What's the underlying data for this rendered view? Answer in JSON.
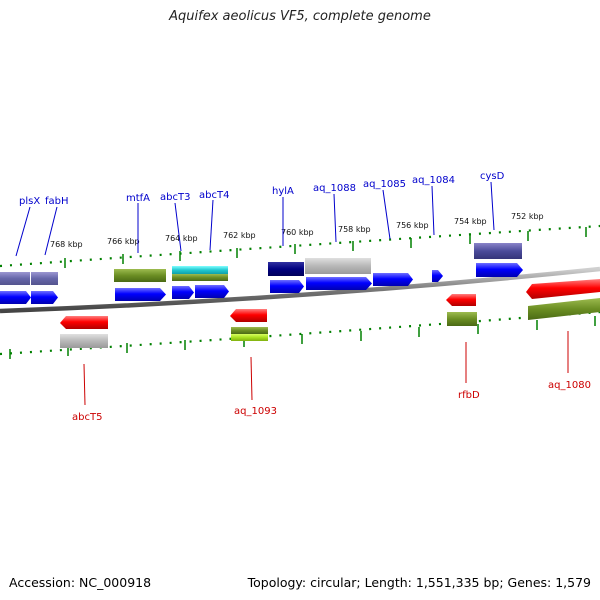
{
  "title": "Aquifex aeolicus VF5, complete genome",
  "footer": {
    "accession": "Accession: NC_000918",
    "stats": "Topology: circular; Length: 1,551,335 bp; Genes: 1,579"
  },
  "scale_labels": [
    "768 kbp",
    "766 kbp",
    "764 kbp",
    "762 kbp",
    "760 kbp",
    "758 kbp",
    "756 kbp",
    "754 kbp",
    "752 kbp"
  ],
  "gene_labels": {
    "plsX": "plsX",
    "fabH": "fabH",
    "mtfA": "mtfA",
    "abcT3": "abcT3",
    "abcT4": "abcT4",
    "hylA": "hylA",
    "aq_1088": "aq_1088",
    "aq_1085": "aq_1085",
    "aq_1084": "aq_1084",
    "cysD": "cysD",
    "abcT5": "abcT5",
    "aq_1093": "aq_1093",
    "rfbD": "rfbD",
    "aq_1080": "aq_1080"
  },
  "colors": {
    "forward_strand": "#0000ff",
    "reverse_strand": "#ff0000",
    "forward_label": "#0000cc",
    "reverse_label": "#cc0000",
    "tick": "#008000",
    "backbone": "#888888"
  }
}
